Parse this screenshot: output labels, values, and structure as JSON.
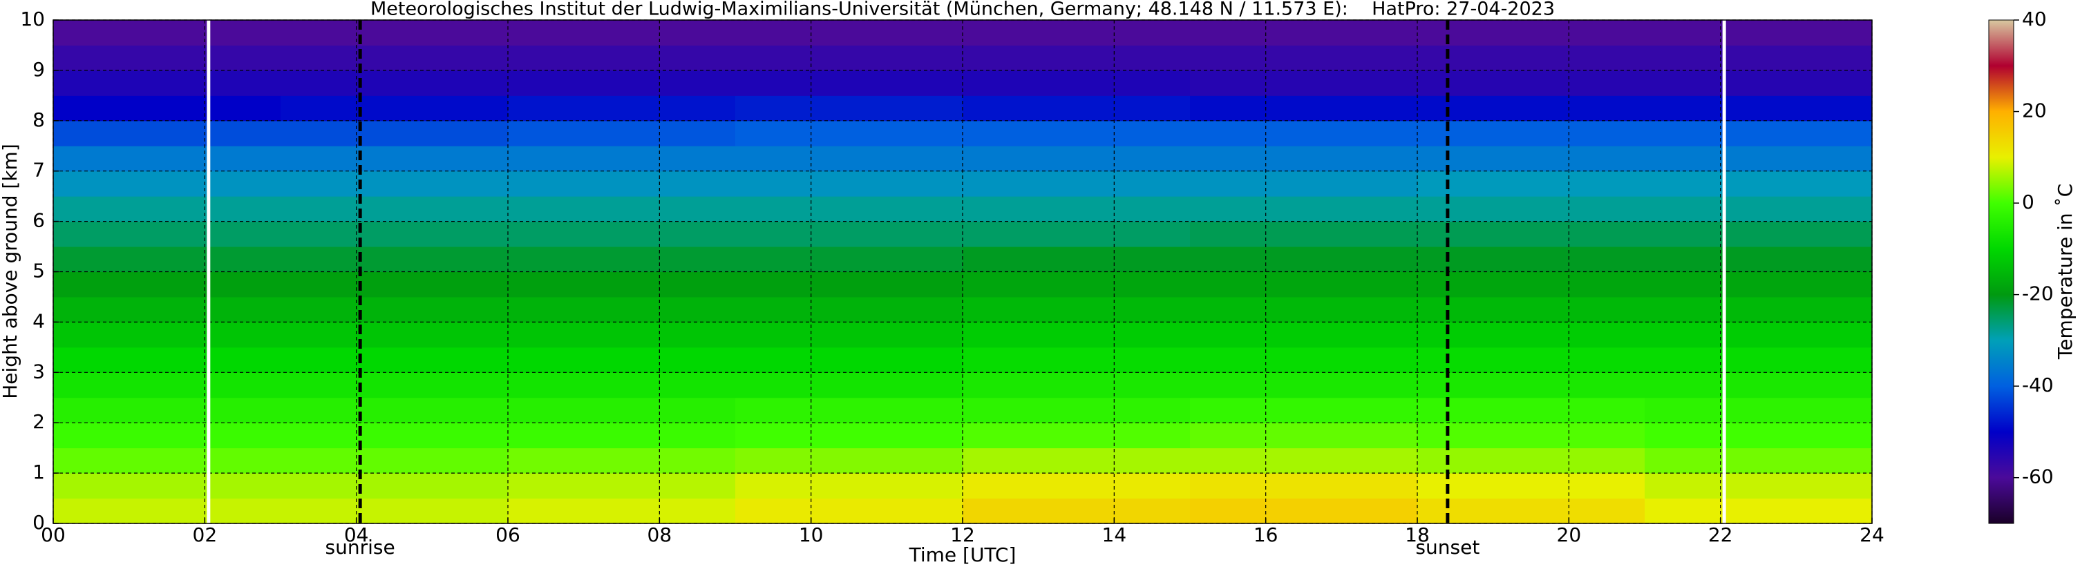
{
  "chart_data": {
    "type": "heatmap",
    "title": "Meteorologisches Institut der Ludwig-Maximilians-Universität (München, Germany; 48.148 N / 11.573 E):    HatPro: 27-04-2023",
    "x_label": "Time [UTC]",
    "y_label": "Height above ground [km]",
    "colorbar_label": "Temperature in ˚C",
    "xlim": [
      0,
      24
    ],
    "ylim": [
      0,
      10
    ],
    "xticks": [
      {
        "value": 0,
        "label": "00"
      },
      {
        "value": 2,
        "label": "02"
      },
      {
        "value": 4,
        "label": "04"
      },
      {
        "value": 6,
        "label": "06"
      },
      {
        "value": 8,
        "label": "08"
      },
      {
        "value": 10,
        "label": "10"
      },
      {
        "value": 12,
        "label": "12"
      },
      {
        "value": 14,
        "label": "14"
      },
      {
        "value": 16,
        "label": "16"
      },
      {
        "value": 18,
        "label": "18"
      },
      {
        "value": 20,
        "label": "20"
      },
      {
        "value": 22,
        "label": "22"
      },
      {
        "value": 24,
        "label": "24"
      }
    ],
    "yticks": [
      0,
      1,
      2,
      3,
      4,
      5,
      6,
      7,
      8,
      9,
      10
    ],
    "grid": true,
    "x_bins": [
      0,
      3,
      6,
      9,
      12,
      15,
      18,
      21,
      24
    ],
    "y_bins": [
      0,
      0.5,
      1,
      1.5,
      2,
      2.5,
      3,
      3.5,
      4,
      4.5,
      5,
      5.5,
      6,
      6.5,
      7,
      7.5,
      8,
      8.5,
      9,
      9.5,
      10
    ],
    "values": [
      [
        8,
        8,
        9,
        11,
        14,
        15,
        13,
        10
      ],
      [
        6,
        6,
        7,
        9,
        11,
        12,
        10,
        8
      ],
      [
        2,
        2,
        3,
        4,
        6,
        6,
        5,
        3
      ],
      [
        -1,
        -1,
        -1,
        0,
        1,
        2,
        1,
        0
      ],
      [
        -4,
        -4,
        -4,
        -3,
        -3,
        -2,
        -2,
        -3
      ],
      [
        -7,
        -7,
        -7,
        -7,
        -6,
        -6,
        -6,
        -6
      ],
      [
        -10,
        -10,
        -10,
        -10,
        -9,
        -9,
        -9,
        -9
      ],
      [
        -13,
        -13,
        -13,
        -13,
        -12,
        -12,
        -12,
        -12
      ],
      [
        -16,
        -16,
        -16,
        -16,
        -15,
        -15,
        -15,
        -15
      ],
      [
        -19,
        -19,
        -19,
        -19,
        -18,
        -18,
        -18,
        -18
      ],
      [
        -22,
        -22,
        -22,
        -22,
        -21,
        -21,
        -21,
        -21
      ],
      [
        -25,
        -25,
        -25,
        -25,
        -25,
        -24,
        -24,
        -24
      ],
      [
        -28,
        -28,
        -28,
        -28,
        -28,
        -28,
        -28,
        -28
      ],
      [
        -32,
        -32,
        -32,
        -32,
        -32,
        -32,
        -31,
        -31
      ],
      [
        -36,
        -36,
        -36,
        -36,
        -36,
        -36,
        -36,
        -36
      ],
      [
        -42,
        -42,
        -41,
        -40,
        -40,
        -40,
        -40,
        -40
      ],
      [
        -50,
        -49,
        -48,
        -47,
        -48,
        -49,
        -49,
        -49
      ],
      [
        -54,
        -54,
        -54,
        -54,
        -54,
        -55,
        -55,
        -55
      ],
      [
        -57,
        -57,
        -57,
        -57,
        -57,
        -57,
        -57,
        -57
      ],
      [
        -60,
        -60,
        -60,
        -60,
        -60,
        -60,
        -60,
        -60
      ]
    ],
    "clim": [
      -70,
      40
    ],
    "colorbar_ticks": [
      -60,
      -40,
      -20,
      0,
      20,
      40
    ],
    "colormap": [
      "#1a0028",
      "#4b0a9a",
      "#0000c8",
      "#0060e0",
      "#00a0b8",
      "#009a10",
      "#00d800",
      "#40ff00",
      "#e8f000",
      "#ffb000",
      "#b00030",
      "#d8c8a0"
    ],
    "markers": [
      {
        "x": 4.05,
        "label": "sunrise"
      },
      {
        "x": 18.4,
        "label": "sunset"
      }
    ],
    "gap_lines": [
      2.05,
      22.05
    ]
  }
}
